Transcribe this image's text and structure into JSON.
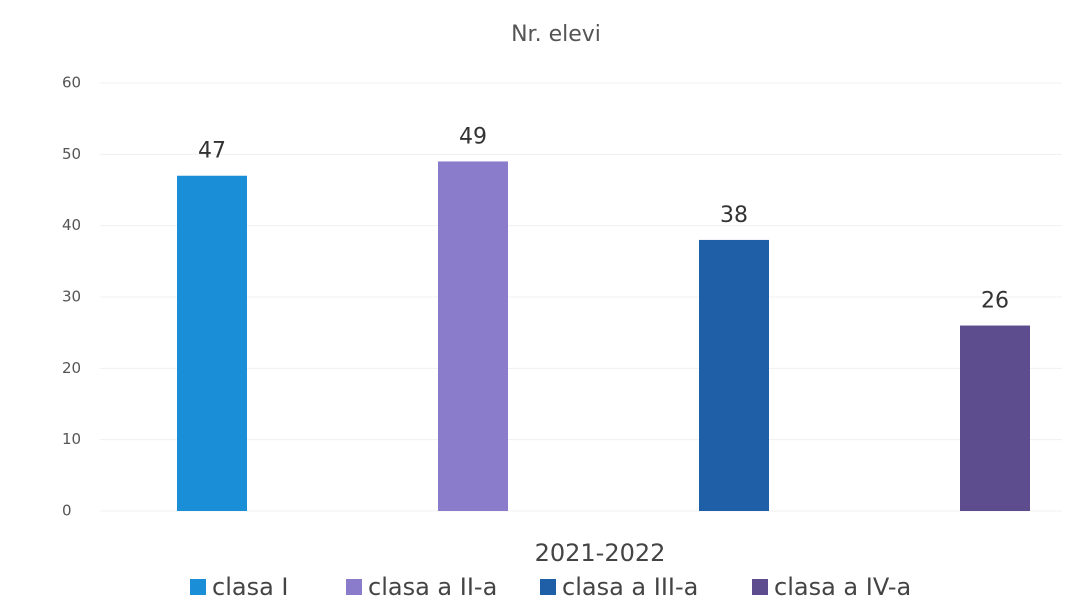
{
  "chart_data": {
    "type": "bar",
    "title": "Nr. elevi",
    "categories": [
      "2021-2022"
    ],
    "series": [
      {
        "name": "clasa I",
        "color": "#1a8fd8",
        "values": [
          47
        ]
      },
      {
        "name": "clasa a II-a",
        "color": "#8a7bcb",
        "values": [
          49
        ]
      },
      {
        "name": "clasa a III-a",
        "color": "#1f5fa8",
        "values": [
          38
        ]
      },
      {
        "name": "clasa a IV-a",
        "color": "#5d4d8e",
        "values": [
          26
        ]
      }
    ],
    "ylim": [
      0,
      60
    ],
    "yticks": [
      0,
      10,
      20,
      30,
      40,
      50,
      60
    ],
    "grid": true,
    "legend": "bottom"
  }
}
